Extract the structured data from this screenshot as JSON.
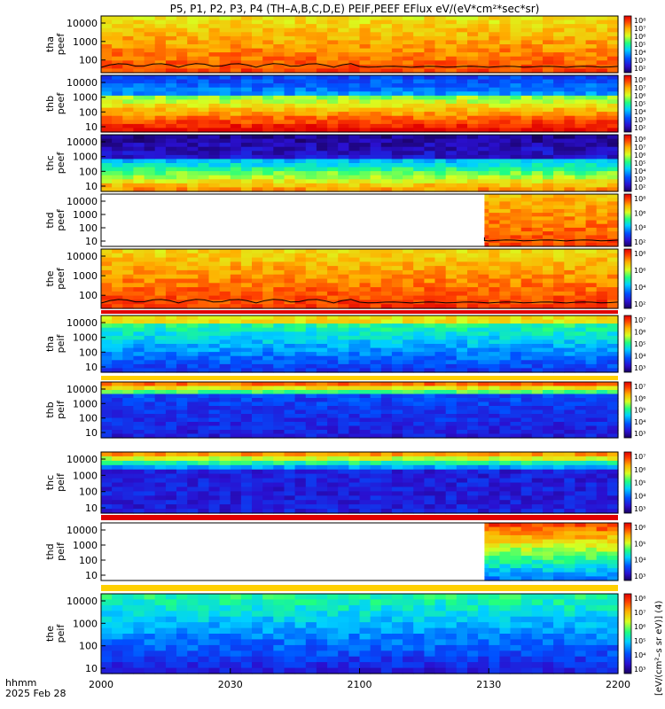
{
  "title": "P5, P1, P2, P3, P4 (TH–A,B,C,D,E) PEIF,PEEF EFlux eV/(eV*cm²*sec*sr)",
  "colorbar_label": "[eV/(cm²–s sr eV)] (4)",
  "footer": {
    "time_label": "hhmm",
    "date_label": "2025 Feb 28"
  },
  "chart_data": {
    "type": "heatmap",
    "x_ticks": [
      "2000",
      "2030",
      "2100",
      "2130",
      "2200"
    ],
    "xlim": [
      "20:00",
      "22:00"
    ],
    "panels": [
      {
        "label_top": "tha",
        "label_bottom": "peef",
        "y_ticks": [
          "10000",
          "1000",
          "100"
        ],
        "cbar_ticks": [
          "10⁸",
          "10⁷",
          "10⁶",
          "10⁵",
          "10⁴",
          "10³",
          "10²"
        ],
        "has_line": true
      },
      {
        "label_top": "thb",
        "label_bottom": "peef",
        "y_ticks": [
          "10000",
          "1000",
          "100",
          "10"
        ],
        "cbar_ticks": [
          "10⁸",
          "10⁷",
          "10⁶",
          "10⁵",
          "10⁴",
          "10³",
          "10²"
        ],
        "has_line": false
      },
      {
        "label_top": "thc",
        "label_bottom": "peef",
        "y_ticks": [
          "10000",
          "1000",
          "100",
          "10"
        ],
        "cbar_ticks": [
          "10⁸",
          "10⁷",
          "10⁶",
          "10⁵",
          "10⁴",
          "10³",
          "10²"
        ],
        "has_line": false
      },
      {
        "label_top": "thd",
        "label_bottom": "peef",
        "y_ticks": [
          "10000",
          "1000",
          "100",
          "10"
        ],
        "cbar_ticks": [
          "10⁸",
          "10⁶",
          "10⁴",
          "10²"
        ],
        "has_line": true,
        "data_start": "21:29"
      },
      {
        "label_top": "the",
        "label_bottom": "peef",
        "y_ticks": [
          "10000",
          "1000",
          "100"
        ],
        "cbar_ticks": [
          "10⁸",
          "10⁶",
          "10⁴",
          "10²"
        ],
        "has_line": true
      },
      {
        "label_top": "tha",
        "label_bottom": "peif",
        "y_ticks": [
          "10000",
          "1000",
          "100",
          "10"
        ],
        "cbar_ticks": [
          "10⁷",
          "10⁶",
          "10⁵",
          "10⁴",
          "10³"
        ],
        "has_line": false
      },
      {
        "label_top": "thb",
        "label_bottom": "peif",
        "y_ticks": [
          "10000",
          "1000",
          "100",
          "10"
        ],
        "cbar_ticks": [
          "10⁷",
          "10⁶",
          "10⁵",
          "10⁴",
          "10³"
        ],
        "has_line": false
      },
      {
        "label_top": "thc",
        "label_bottom": "peif",
        "y_ticks": [
          "10000",
          "1000",
          "100",
          "10"
        ],
        "cbar_ticks": [
          "10⁷",
          "10⁶",
          "10⁵",
          "10⁴",
          "10³"
        ],
        "has_line": false
      },
      {
        "label_top": "thd",
        "label_bottom": "peif",
        "y_ticks": [
          "10000",
          "1000",
          "100",
          "10"
        ],
        "cbar_ticks": [
          "10⁶",
          "10⁵",
          "10⁴",
          "10³"
        ],
        "has_line": false,
        "data_start": "21:29"
      },
      {
        "label_top": "the",
        "label_bottom": "peif",
        "y_ticks": [
          "10000",
          "1000",
          "100",
          "10"
        ],
        "cbar_ticks": [
          "10⁸",
          "10⁷",
          "10⁶",
          "10⁵",
          "10⁴",
          "10³"
        ],
        "has_line": false
      }
    ]
  }
}
